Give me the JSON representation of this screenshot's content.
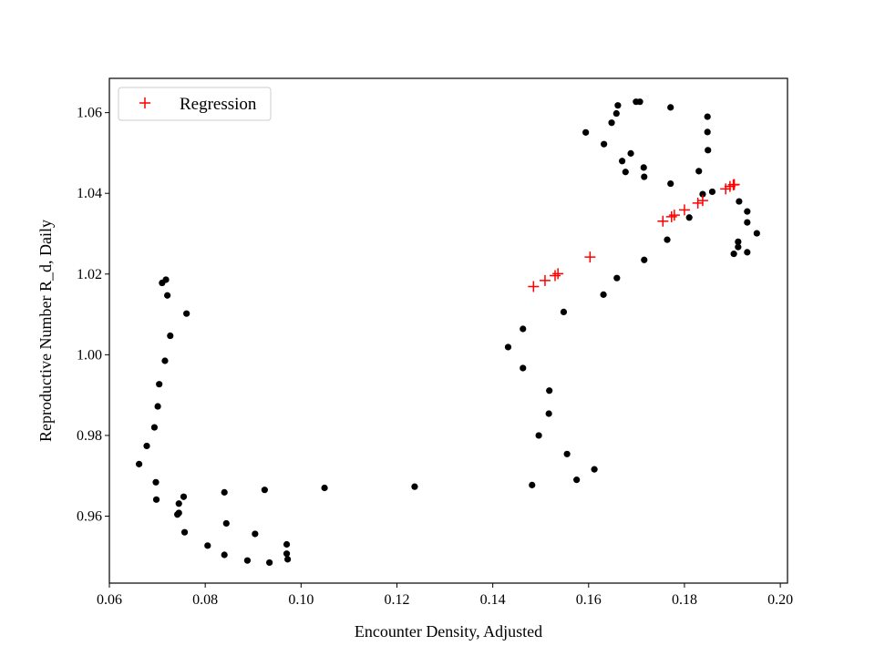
{
  "chart_data": {
    "type": "scatter",
    "title": "",
    "xlabel": "Encounter Density, Adjusted",
    "ylabel": "Reproductive Number R_d, Daily",
    "xlim": [
      0.06,
      0.2015
    ],
    "ylim": [
      0.9434,
      1.0685
    ],
    "xticks": [
      {
        "value": 0.06,
        "label": "0.06"
      },
      {
        "value": 0.08,
        "label": "0.08"
      },
      {
        "value": 0.1,
        "label": "0.10"
      },
      {
        "value": 0.12,
        "label": "0.12"
      },
      {
        "value": 0.14,
        "label": "0.14"
      },
      {
        "value": 0.16,
        "label": "0.16"
      },
      {
        "value": 0.18,
        "label": "0.18"
      },
      {
        "value": 0.2,
        "label": "0.20"
      }
    ],
    "yticks": [
      {
        "value": 0.96,
        "label": "0.96"
      },
      {
        "value": 0.98,
        "label": "0.98"
      },
      {
        "value": 1.0,
        "label": "1.00"
      },
      {
        "value": 1.02,
        "label": "1.02"
      },
      {
        "value": 1.04,
        "label": "1.04"
      },
      {
        "value": 1.06,
        "label": "1.06"
      }
    ],
    "grid": false,
    "legend": {
      "placement": "top-left",
      "entries": [
        {
          "label": "Regression",
          "marker": "+",
          "color": "#ff0000"
        }
      ]
    },
    "series": [
      {
        "marker": "dot",
        "color": "#000000",
        "points": [
          [
            0.0662,
            0.9729
          ],
          [
            0.0678,
            0.9774
          ],
          [
            0.0694,
            0.982
          ],
          [
            0.0701,
            0.9872
          ],
          [
            0.0704,
            0.9927
          ],
          [
            0.0716,
            0.9985
          ],
          [
            0.0727,
            1.0047
          ],
          [
            0.0721,
            1.0147
          ],
          [
            0.071,
            1.0178
          ],
          [
            0.0718,
            1.0186
          ],
          [
            0.0761,
            1.0102
          ],
          [
            0.0697,
            0.9684
          ],
          [
            0.0698,
            0.9641
          ],
          [
            0.0745,
            0.9631
          ],
          [
            0.0742,
            0.9604
          ],
          [
            0.0745,
            0.9608
          ],
          [
            0.0755,
            0.9648
          ],
          [
            0.0757,
            0.956
          ],
          [
            0.0805,
            0.9527
          ],
          [
            0.084,
            0.9504
          ],
          [
            0.0844,
            0.9582
          ],
          [
            0.084,
            0.9659
          ],
          [
            0.0888,
            0.949
          ],
          [
            0.0904,
            0.9556
          ],
          [
            0.0924,
            0.9665
          ],
          [
            0.0934,
            0.9485
          ],
          [
            0.097,
            0.953
          ],
          [
            0.097,
            0.9507
          ],
          [
            0.0972,
            0.9493
          ],
          [
            0.1049,
            0.967
          ],
          [
            0.1237,
            0.9673
          ],
          [
            0.1432,
            1.0019
          ],
          [
            0.1463,
            0.9967
          ],
          [
            0.1463,
            1.0064
          ],
          [
            0.1482,
            0.9677
          ],
          [
            0.1496,
            0.98
          ],
          [
            0.1517,
            0.9854
          ],
          [
            0.1518,
            0.9911
          ],
          [
            0.1548,
            1.0106
          ],
          [
            0.1555,
            0.9754
          ],
          [
            0.1575,
            0.969
          ],
          [
            0.1612,
            0.9716
          ],
          [
            0.1631,
            1.0149
          ],
          [
            0.1659,
            1.019
          ],
          [
            0.1716,
            1.0235
          ],
          [
            0.1764,
            1.0285
          ],
          [
            0.181,
            1.034
          ],
          [
            0.1594,
            1.0551
          ],
          [
            0.1632,
            1.0522
          ],
          [
            0.1648,
            1.0575
          ],
          [
            0.1658,
            1.0598
          ],
          [
            0.1661,
            1.0618
          ],
          [
            0.167,
            1.048
          ],
          [
            0.1677,
            1.0453
          ],
          [
            0.1688,
            1.0499
          ],
          [
            0.1699,
            1.0627
          ],
          [
            0.1707,
            1.0627
          ],
          [
            0.1715,
            1.0464
          ],
          [
            0.1716,
            1.0441
          ],
          [
            0.1771,
            1.0613
          ],
          [
            0.1771,
            1.0424
          ],
          [
            0.183,
            1.0455
          ],
          [
            0.1838,
            1.0398
          ],
          [
            0.1858,
            1.0404
          ],
          [
            0.1848,
            1.059
          ],
          [
            0.1848,
            1.0552
          ],
          [
            0.1849,
            1.0507
          ],
          [
            0.1914,
            1.038
          ],
          [
            0.1931,
            1.0355
          ],
          [
            0.1931,
            1.0328
          ],
          [
            0.1951,
            1.0301
          ],
          [
            0.1912,
            1.028
          ],
          [
            0.1912,
            1.0267
          ],
          [
            0.1903,
            1.025
          ],
          [
            0.1931,
            1.0254
          ]
        ]
      },
      {
        "name": "Regression",
        "marker": "plus",
        "color": "#ff0000",
        "points": [
          [
            0.1485,
            1.0169
          ],
          [
            0.1509,
            1.0184
          ],
          [
            0.153,
            1.0196
          ],
          [
            0.1536,
            1.0201
          ],
          [
            0.1603,
            1.0242
          ],
          [
            0.1755,
            1.0331
          ],
          [
            0.1773,
            1.0342
          ],
          [
            0.1779,
            1.0346
          ],
          [
            0.18,
            1.0359
          ],
          [
            0.1828,
            1.0376
          ],
          [
            0.1838,
            1.0382
          ],
          [
            0.1886,
            1.0411
          ],
          [
            0.1895,
            1.0417
          ],
          [
            0.1902,
            1.0421
          ],
          [
            0.1904,
            1.0422
          ]
        ]
      }
    ]
  }
}
